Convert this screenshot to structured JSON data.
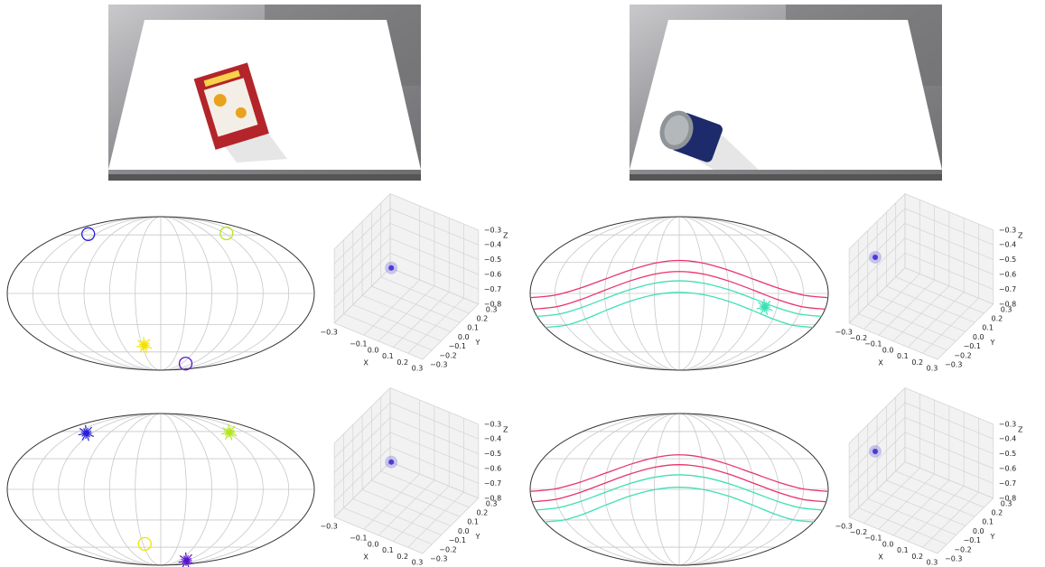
{
  "chart_data": [
    {
      "type": "mollweide",
      "points": [
        {
          "lon": -134,
          "lat": 61,
          "color": "#2a1fd8",
          "marker": "ring"
        },
        {
          "lon": 124,
          "lat": 62,
          "color": "#b5e61d",
          "marker": "ring"
        },
        {
          "lon": -26,
          "lat": -52,
          "color": "#f2e200",
          "marker": "cluster"
        },
        {
          "lon": 72,
          "lat": -76,
          "color": "#5a14d0",
          "marker": "ring"
        }
      ]
    },
    {
      "type": "scatter3d",
      "xlabel": "X",
      "ylabel": "Y",
      "zlabel": "Z",
      "xlim": [
        -0.3,
        0.3
      ],
      "ylim": [
        -0.3,
        0.3
      ],
      "zlim": [
        -0.8,
        -0.3
      ],
      "xticks": [
        {
          "value": -0.3,
          "label": "−0.3"
        },
        {
          "value": -0.1,
          "label": "−0.1"
        },
        {
          "value": 0,
          "label": "0.0"
        },
        0.1,
        0.2,
        0.3
      ],
      "yticks": [
        {
          "value": -0.3,
          "label": "−0.3"
        },
        {
          "value": -0.2,
          "label": "−0.2"
        },
        {
          "value": -0.1,
          "label": "−0.1"
        },
        {
          "value": 0,
          "label": "0.0"
        },
        0.1,
        0.2,
        0.3
      ],
      "zticks": [
        {
          "value": -0.8,
          "label": "−0.8"
        },
        {
          "value": -0.7,
          "label": "−0.7"
        },
        {
          "value": -0.6,
          "label": "−0.6"
        },
        {
          "value": -0.5,
          "label": "−0.5"
        },
        {
          "value": -0.4,
          "label": "−0.4"
        },
        {
          "value": -0.3,
          "label": "−0.3"
        }
      ],
      "color": "#4b3bd6",
      "points": [
        {
          "x": -0.28,
          "y": 0.28,
          "z": -0.78
        }
      ]
    },
    {
      "type": "mollweide",
      "points": [
        {
          "lon": 105,
          "lat": -13,
          "color": "#3de0b5",
          "marker": "cluster"
        }
      ],
      "series": [
        {
          "color": "#e8336d",
          "x": [
            -180,
            -150,
            -120,
            -90,
            -60,
            -30,
            0,
            30,
            60,
            90,
            120,
            150,
            180
          ],
          "values": [
            -4,
            -1.6,
            5,
            14,
            23,
            29.6,
            32,
            29.6,
            23,
            14,
            5,
            -1.6,
            -4
          ]
        },
        {
          "color": "#e8336d",
          "x": [
            -180,
            -150,
            -120,
            -90,
            -60,
            -30,
            0,
            30,
            60,
            90,
            120,
            150,
            180
          ],
          "values": [
            -15,
            -12.6,
            -6,
            3,
            12,
            18.6,
            21,
            18.6,
            12,
            3,
            -6,
            -12.6,
            -15
          ]
        },
        {
          "color": "#3de0b5",
          "x": [
            -180,
            -150,
            -120,
            -90,
            -60,
            -30,
            0,
            30,
            60,
            90,
            120,
            150,
            180
          ],
          "values": [
            -22,
            -19.7,
            -13.5,
            -5,
            3.5,
            9.7,
            12,
            9.7,
            3.5,
            -5,
            -13.5,
            -19.7,
            -22
          ]
        },
        {
          "color": "#3de0b5",
          "x": [
            -180,
            -150,
            -120,
            -90,
            -60,
            -30,
            0,
            30,
            60,
            90,
            120,
            150,
            180
          ],
          "values": [
            -33,
            -30.7,
            -24.5,
            -16,
            -7.5,
            -1.3,
            1,
            -1.3,
            -7.5,
            -16,
            -24.5,
            -30.7,
            -33
          ]
        }
      ]
    },
    {
      "type": "scatter3d",
      "xlabel": "X",
      "ylabel": "Y",
      "zlabel": "Z",
      "xlim": [
        -0.3,
        0.3
      ],
      "ylim": [
        -0.3,
        0.3
      ],
      "zlim": [
        -0.8,
        -0.3
      ],
      "xticks": [
        {
          "value": -0.3,
          "label": "−0.3"
        },
        {
          "value": -0.2,
          "label": "−0.2"
        },
        {
          "value": -0.1,
          "label": "−0.1"
        },
        {
          "value": 0,
          "label": "0.0"
        },
        0.1,
        0.2,
        0.3
      ],
      "yticks": [
        {
          "value": -0.3,
          "label": "−0.3"
        },
        {
          "value": -0.2,
          "label": "−0.2"
        },
        {
          "value": -0.1,
          "label": "−0.1"
        },
        {
          "value": 0,
          "label": "0.0"
        },
        0.1,
        0.2,
        0.3
      ],
      "zticks": [
        {
          "value": -0.8,
          "label": "−0.8"
        },
        {
          "value": -0.7,
          "label": "−0.7"
        },
        {
          "value": -0.6,
          "label": "−0.6"
        },
        {
          "value": -0.5,
          "label": "−0.5"
        },
        {
          "value": -0.4,
          "label": "−0.4"
        },
        {
          "value": -0.3,
          "label": "−0.3"
        }
      ],
      "color": "#4b3bd6",
      "points": [
        {
          "x": -0.3,
          "y": -0.02,
          "z": -0.53
        }
      ]
    },
    {
      "type": "mollweide",
      "points": [
        {
          "lon": -130,
          "lat": 58,
          "color": "#2a1fd8",
          "marker": "cluster"
        },
        {
          "lon": 122,
          "lat": 59,
          "color": "#b5e61d",
          "marker": "cluster"
        },
        {
          "lon": -27,
          "lat": -56,
          "color": "#f2e200",
          "marker": "ring"
        },
        {
          "lon": 87,
          "lat": -79,
          "color": "#5a14d0",
          "marker": "cluster"
        }
      ]
    },
    {
      "type": "scatter3d",
      "xlabel": "X",
      "ylabel": "Y",
      "zlabel": "Z",
      "xlim": [
        -0.3,
        0.3
      ],
      "ylim": [
        -0.3,
        0.3
      ],
      "zlim": [
        -0.8,
        -0.3
      ],
      "xticks": [
        {
          "value": -0.3,
          "label": "−0.3"
        },
        {
          "value": -0.1,
          "label": "−0.1"
        },
        {
          "value": 0,
          "label": "0.0"
        },
        0.1,
        0.2,
        0.3
      ],
      "yticks": [
        {
          "value": -0.3,
          "label": "−0.3"
        },
        {
          "value": -0.2,
          "label": "−0.2"
        },
        {
          "value": -0.1,
          "label": "−0.1"
        },
        {
          "value": 0,
          "label": "0.0"
        },
        0.1,
        0.2,
        0.3
      ],
      "zticks": [
        {
          "value": -0.8,
          "label": "−0.8"
        },
        {
          "value": -0.7,
          "label": "−0.7"
        },
        {
          "value": -0.6,
          "label": "−0.6"
        },
        {
          "value": -0.5,
          "label": "−0.5"
        },
        {
          "value": -0.4,
          "label": "−0.4"
        },
        {
          "value": -0.3,
          "label": "−0.3"
        }
      ],
      "color": "#4b3bd6",
      "points": [
        {
          "x": -0.28,
          "y": 0.28,
          "z": -0.78
        }
      ]
    },
    {
      "type": "mollweide",
      "series": [
        {
          "color": "#e8336d",
          "x": [
            -180,
            -150,
            -120,
            -90,
            -60,
            -30,
            0,
            30,
            60,
            90,
            120,
            150,
            180
          ],
          "values": [
            -2,
            0.4,
            7,
            16,
            25,
            31.6,
            34,
            31.6,
            25,
            16,
            7,
            0.4,
            -2
          ]
        },
        {
          "color": "#e8336d",
          "x": [
            -180,
            -150,
            -120,
            -90,
            -60,
            -30,
            0,
            30,
            60,
            90,
            120,
            150,
            180
          ],
          "values": [
            -12,
            -9.6,
            -3,
            6,
            15,
            21.6,
            24,
            21.6,
            15,
            6,
            -3,
            -9.6,
            -12
          ]
        },
        {
          "color": "#3de0b5",
          "x": [
            -180,
            -150,
            -120,
            -90,
            -60,
            -30,
            0,
            30,
            60,
            90,
            120,
            150,
            180
          ],
          "values": [
            -20,
            -17.7,
            -11.5,
            -3,
            5.5,
            11.7,
            14,
            11.7,
            5.5,
            -3,
            -11.5,
            -17.7,
            -20
          ]
        },
        {
          "color": "#3de0b5",
          "x": [
            -180,
            -150,
            -120,
            -90,
            -60,
            -30,
            0,
            30,
            60,
            90,
            120,
            150,
            180
          ],
          "values": [
            -32,
            -29.7,
            -23.5,
            -15,
            -6.5,
            -0.3,
            2,
            -0.3,
            -6.5,
            -15,
            -23.5,
            -29.7,
            -32
          ]
        }
      ]
    },
    {
      "type": "scatter3d",
      "xlabel": "X",
      "ylabel": "Y",
      "zlabel": "Z",
      "xlim": [
        -0.3,
        0.3
      ],
      "ylim": [
        -0.3,
        0.3
      ],
      "zlim": [
        -0.8,
        -0.3
      ],
      "xticks": [
        {
          "value": -0.3,
          "label": "−0.3"
        },
        {
          "value": -0.2,
          "label": "−0.2"
        },
        {
          "value": -0.1,
          "label": "−0.1"
        },
        {
          "value": 0,
          "label": "0.0"
        },
        0.1,
        0.2,
        0.3
      ],
      "yticks": [
        {
          "value": -0.3,
          "label": "−0.3"
        },
        {
          "value": -0.2,
          "label": "−0.2"
        },
        {
          "value": -0.1,
          "label": "−0.1"
        },
        {
          "value": 0,
          "label": "0.0"
        },
        0.1,
        0.2,
        0.3
      ],
      "zticks": [
        {
          "value": -0.8,
          "label": "−0.8"
        },
        {
          "value": -0.7,
          "label": "−0.7"
        },
        {
          "value": -0.6,
          "label": "−0.6"
        },
        {
          "value": -0.5,
          "label": "−0.5"
        },
        {
          "value": -0.4,
          "label": "−0.4"
        },
        {
          "value": -0.3,
          "label": "−0.3"
        }
      ],
      "color": "#4b3bd6",
      "points": [
        {
          "x": -0.3,
          "y": -0.02,
          "z": -0.53
        }
      ]
    }
  ]
}
